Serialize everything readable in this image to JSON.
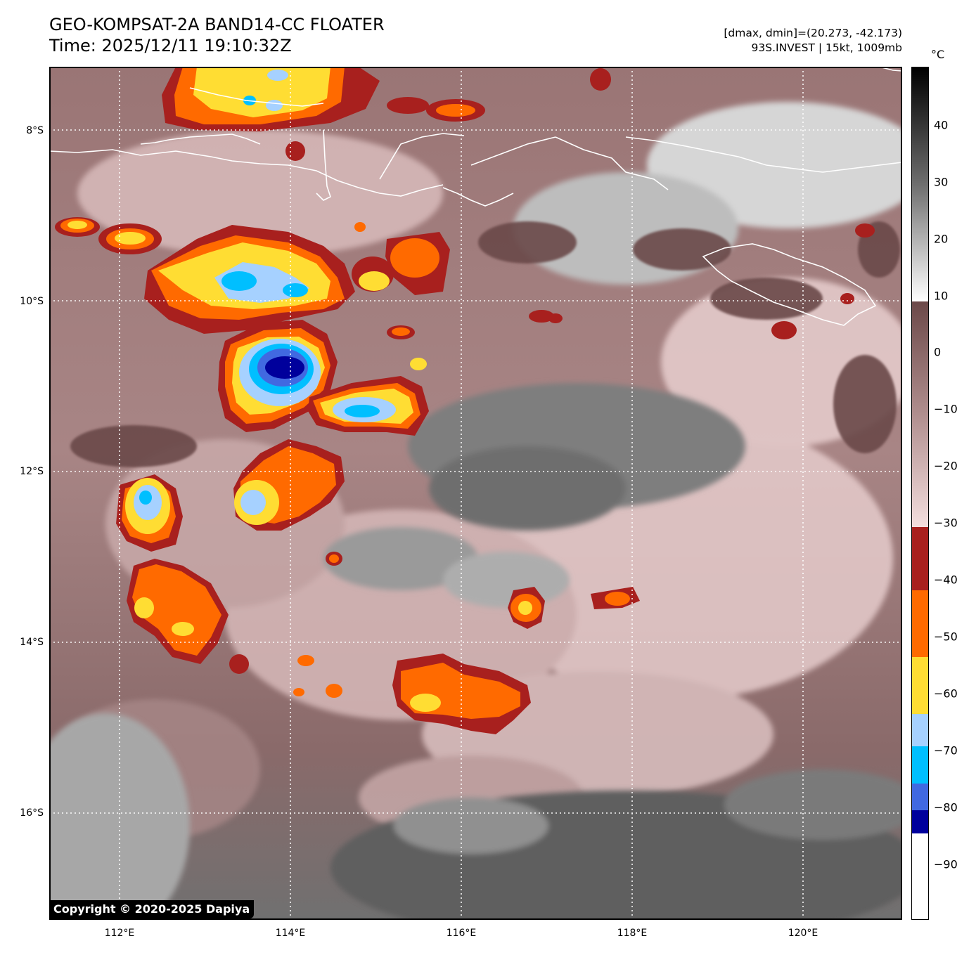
{
  "header": {
    "title_line1": "GEO-KOMPSAT-2A BAND14-CC FLOATER",
    "title_line2": "Time: 2025/12/11 19:10:32Z",
    "range_text": "[dmax, dmin]=(20.273, -42.173)",
    "storm_text": "93S.INVEST | 15kt, 1009mb"
  },
  "axes": {
    "lat_labels": [
      "8°S",
      "10°S",
      "12°S",
      "14°S",
      "16°S"
    ],
    "lon_labels": [
      "112°E",
      "114°E",
      "116°E",
      "118°E",
      "120°E"
    ]
  },
  "colorbar": {
    "unit": "°C",
    "ticks": [
      "40",
      "30",
      "20",
      "10",
      "0",
      "−10",
      "−20",
      "−30",
      "−40",
      "−50",
      "−60",
      "−70",
      "−80",
      "−90"
    ],
    "colors": {
      "warm_top": "#000000",
      "gray_mid": "#8a8a8a",
      "white_10": "#ffffff",
      "brown_0": "#6b4848",
      "pink_minus30": "#f4dede",
      "red": "#a8201e",
      "orange": "#ff6a00",
      "yellow": "#ffdd33",
      "light_blue": "#a6d1ff",
      "cyan": "#00bfff",
      "blue": "#4169e1",
      "navy": "#00009c",
      "white_cold": "#ffffff"
    }
  },
  "footer": {
    "copyright": "Copyright © 2020-2025 Dapiya"
  }
}
